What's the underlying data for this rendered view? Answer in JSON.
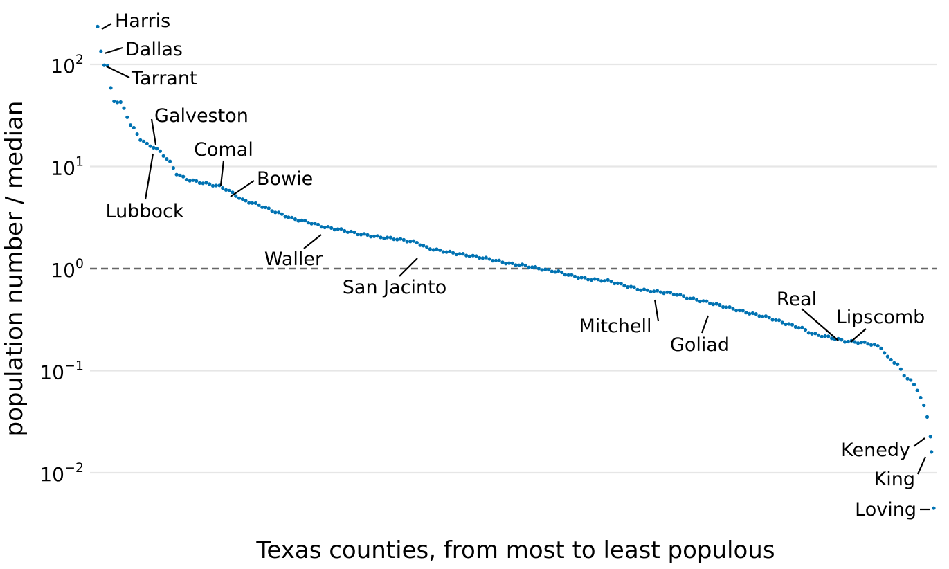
{
  "chart_data": {
    "type": "scatter",
    "xlabel": "Texas counties, from most to least populous",
    "ylabel": "population number / median",
    "yscale": "log",
    "ylim": [
      0.0038,
      300
    ],
    "xlim": [
      0.5,
      254.5
    ],
    "y_ticks": [
      {
        "value": 0.01,
        "base": "10",
        "exponent": "−2"
      },
      {
        "value": 0.1,
        "base": "10",
        "exponent": "−1"
      },
      {
        "value": 1,
        "base": "10",
        "exponent": "0"
      },
      {
        "value": 10,
        "base": "10",
        "exponent": "1"
      },
      {
        "value": 100,
        "base": "10",
        "exponent": "2"
      }
    ],
    "grid": true,
    "reference_line": {
      "y": 1,
      "style": "dashed",
      "color": "#666666"
    },
    "point_color": "#0072b2",
    "n_points": 254,
    "anchors": [
      [
        1,
        230
      ],
      [
        2,
        135
      ],
      [
        3,
        100
      ],
      [
        4,
        96
      ],
      [
        5,
        58
      ],
      [
        6,
        44
      ],
      [
        7,
        43
      ],
      [
        8,
        42
      ],
      [
        9,
        37
      ],
      [
        10,
        31
      ],
      [
        11,
        25.5
      ],
      [
        12,
        23.5
      ],
      [
        14,
        18.5
      ],
      [
        16,
        16.5
      ],
      [
        18,
        15.5
      ],
      [
        20,
        14
      ],
      [
        23,
        11
      ],
      [
        25,
        8.5
      ],
      [
        28,
        7.5
      ],
      [
        32,
        7
      ],
      [
        35,
        6.7
      ],
      [
        38,
        6.4
      ],
      [
        40,
        6
      ],
      [
        42,
        5.5
      ],
      [
        45,
        4.7
      ],
      [
        50,
        4.2
      ],
      [
        55,
        3.6
      ],
      [
        60,
        3.1
      ],
      [
        66,
        2.8
      ],
      [
        70,
        2.55
      ],
      [
        75,
        2.4
      ],
      [
        80,
        2.2
      ],
      [
        86,
        2.05
      ],
      [
        92,
        1.95
      ],
      [
        98,
        1.8
      ],
      [
        101,
        1.6
      ],
      [
        105,
        1.5
      ],
      [
        112,
        1.37
      ],
      [
        118,
        1.28
      ],
      [
        122,
        1.2
      ],
      [
        126,
        1.12
      ],
      [
        130,
        1.08
      ],
      [
        134,
        1.02
      ],
      [
        138,
        0.96
      ],
      [
        141,
        0.93
      ],
      [
        145,
        0.85
      ],
      [
        150,
        0.79
      ],
      [
        156,
        0.76
      ],
      [
        160,
        0.7
      ],
      [
        166,
        0.62
      ],
      [
        170,
        0.6
      ],
      [
        174,
        0.58
      ],
      [
        177,
        0.56
      ],
      [
        180,
        0.52
      ],
      [
        186,
        0.47
      ],
      [
        192,
        0.42
      ],
      [
        197,
        0.38
      ],
      [
        205,
        0.33
      ],
      [
        210,
        0.29
      ],
      [
        215,
        0.26
      ],
      [
        218,
        0.23
      ],
      [
        224,
        0.21
      ],
      [
        228,
        0.195
      ],
      [
        232,
        0.19
      ],
      [
        235,
        0.185
      ],
      [
        237,
        0.178
      ],
      [
        239,
        0.168
      ],
      [
        241,
        0.135
      ],
      [
        244,
        0.115
      ],
      [
        246,
        0.09
      ],
      [
        248,
        0.08
      ],
      [
        250,
        0.065
      ],
      [
        251,
        0.055
      ],
      [
        252,
        0.045
      ],
      [
        253,
        0.035
      ],
      [
        254,
        0.023
      ],
      [
        254.5,
        0.016
      ],
      [
        255,
        0.0045
      ]
    ],
    "labeled_counties": [
      {
        "name": "Harris",
        "x": 1,
        "y": 230
      },
      {
        "name": "Dallas",
        "x": 2,
        "y": 135
      },
      {
        "name": "Tarrant",
        "x": 3,
        "y": 100
      },
      {
        "name": "Galveston",
        "x": 20,
        "y": 15.5
      },
      {
        "name": "Lubbock",
        "x": 19,
        "y": 14.5
      },
      {
        "name": "Comal",
        "x": 38,
        "y": 6.4
      },
      {
        "name": "Bowie",
        "x": 41,
        "y": 5.2
      },
      {
        "name": "Waller",
        "x": 71,
        "y": 2.5
      },
      {
        "name": "San Jacinto",
        "x": 99,
        "y": 1.55
      },
      {
        "name": "Mitchell",
        "x": 168,
        "y": 0.6
      },
      {
        "name": "Goliad",
        "x": 184,
        "y": 0.42
      },
      {
        "name": "Real",
        "x": 230,
        "y": 0.19
      },
      {
        "name": "Lipscomb",
        "x": 233,
        "y": 0.185
      },
      {
        "name": "Kenedy",
        "x": 253.6,
        "y": 0.023
      },
      {
        "name": "King",
        "x": 254.3,
        "y": 0.016
      },
      {
        "name": "Loving",
        "x": 255,
        "y": 0.0045
      }
    ]
  }
}
